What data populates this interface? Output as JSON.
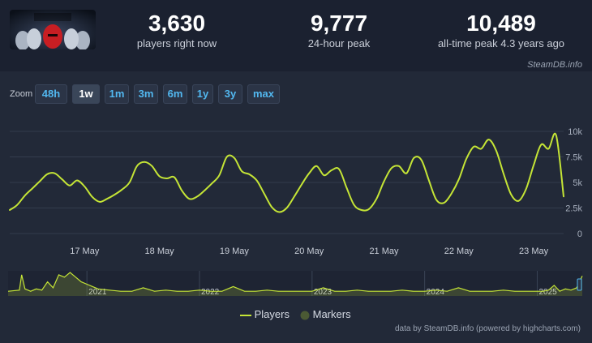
{
  "header": {
    "stats": [
      {
        "value": "3,630",
        "label": "players right now"
      },
      {
        "value": "9,777",
        "label": "24-hour peak"
      },
      {
        "value": "10,489",
        "label": "all-time peak 4.3 years ago"
      }
    ],
    "credit": "SteamDB.info"
  },
  "zoom": {
    "label": "Zoom",
    "buttons": [
      "48h",
      "1w",
      "1m",
      "3m",
      "6m",
      "1y",
      "3y",
      "max"
    ],
    "active": "1w"
  },
  "legend": {
    "players": "Players",
    "markers": "Markers"
  },
  "footer": {
    "credit": "data by SteamDB.info (powered by highcharts.com)"
  },
  "colors": {
    "line": "#c5e536",
    "marker": "#4b5a34"
  },
  "chart_data": {
    "type": "line",
    "series": [
      {
        "name": "Players",
        "x": [
          16.0,
          16.1,
          16.2,
          16.3,
          16.4,
          16.5,
          16.6,
          16.7,
          16.8,
          16.9,
          17.0,
          17.1,
          17.2,
          17.3,
          17.4,
          17.5,
          17.6,
          17.7,
          17.8,
          17.9,
          18.0,
          18.1,
          18.2,
          18.3,
          18.4,
          18.5,
          18.6,
          18.7,
          18.8,
          18.9,
          19.0,
          19.1,
          19.2,
          19.3,
          19.4,
          19.5,
          19.6,
          19.7,
          19.8,
          19.9,
          20.0,
          20.1,
          20.2,
          20.3,
          20.4,
          20.5,
          20.6,
          20.7,
          20.8,
          20.9,
          21.0,
          21.1,
          21.2,
          21.3,
          21.4,
          21.5,
          21.6,
          21.7,
          21.8,
          21.9,
          22.0,
          22.1,
          22.2,
          22.3,
          22.4,
          22.5,
          22.6,
          22.7,
          22.8,
          22.9,
          23.0,
          23.1,
          23.2,
          23.3,
          23.4
        ],
        "y": [
          2300,
          2800,
          3700,
          4400,
          5100,
          5800,
          5900,
          5300,
          4700,
          5200,
          4600,
          3600,
          3100,
          3400,
          3800,
          4300,
          5000,
          6600,
          7000,
          6600,
          5600,
          5400,
          5500,
          4200,
          3400,
          3600,
          4200,
          4900,
          5700,
          7500,
          7400,
          6100,
          5800,
          5200,
          3900,
          2600,
          2100,
          2500,
          3600,
          4800,
          5900,
          6600,
          5700,
          6200,
          6300,
          4500,
          2800,
          2300,
          2400,
          3400,
          5100,
          6400,
          6600,
          5900,
          7400,
          7200,
          5200,
          3300,
          3000,
          3900,
          5300,
          7300,
          8500,
          8300,
          9200,
          8100,
          5800,
          3800,
          3200,
          4400,
          6700,
          8700,
          8300,
          9600,
          3630
        ]
      }
    ],
    "xlim": [
      16.0,
      23.4
    ],
    "x_ticks": [
      {
        "value": 17,
        "label": "17 May"
      },
      {
        "value": 18,
        "label": "18 May"
      },
      {
        "value": 19,
        "label": "19 May"
      },
      {
        "value": 20,
        "label": "20 May"
      },
      {
        "value": 21,
        "label": "21 May"
      },
      {
        "value": 22,
        "label": "22 May"
      },
      {
        "value": 23,
        "label": "23 May"
      }
    ],
    "y_ticks": [
      {
        "value": 0,
        "label": "0"
      },
      {
        "value": 2500,
        "label": "2.5k"
      },
      {
        "value": 5000,
        "label": "5k"
      },
      {
        "value": 7500,
        "label": "7.5k"
      },
      {
        "value": 10000,
        "label": "10k"
      }
    ],
    "ylim": [
      0,
      10000
    ],
    "grid": "horizontal",
    "legend_position": "bottom-center",
    "navigator": {
      "labels": [
        "2021",
        "2022",
        "2023",
        "2024",
        "2025"
      ],
      "label_years": [
        2021,
        2022,
        2023,
        2024,
        2025
      ],
      "xlim": [
        2020.3,
        2025.4
      ],
      "x": [
        2020.3,
        2020.4,
        2020.42,
        2020.45,
        2020.5,
        2020.55,
        2020.6,
        2020.65,
        2020.7,
        2020.75,
        2020.8,
        2020.85,
        2020.9,
        2020.95,
        2021.0,
        2021.05,
        2021.1,
        2021.2,
        2021.3,
        2021.4,
        2021.5,
        2021.6,
        2021.7,
        2021.8,
        2021.9,
        2022.0,
        2022.1,
        2022.2,
        2022.3,
        2022.4,
        2022.5,
        2022.6,
        2022.7,
        2022.8,
        2022.9,
        2023.0,
        2023.1,
        2023.2,
        2023.3,
        2023.4,
        2023.5,
        2023.6,
        2023.7,
        2023.8,
        2023.9,
        2024.0,
        2024.1,
        2024.2,
        2024.3,
        2024.4,
        2024.5,
        2024.6,
        2024.7,
        2024.8,
        2024.9,
        2025.0,
        2025.05,
        2025.1,
        2025.15,
        2025.2,
        2025.25,
        2025.3,
        2025.35,
        2025.4
      ],
      "y": [
        0.2,
        0.25,
        0.9,
        0.3,
        0.2,
        0.3,
        0.25,
        0.6,
        0.35,
        0.9,
        0.8,
        1.0,
        0.8,
        0.6,
        0.5,
        0.4,
        0.3,
        0.25,
        0.2,
        0.2,
        0.35,
        0.2,
        0.25,
        0.2,
        0.2,
        0.25,
        0.2,
        0.2,
        0.4,
        0.2,
        0.2,
        0.25,
        0.2,
        0.2,
        0.2,
        0.2,
        0.35,
        0.2,
        0.2,
        0.25,
        0.2,
        0.2,
        0.2,
        0.25,
        0.2,
        0.2,
        0.25,
        0.2,
        0.35,
        0.2,
        0.2,
        0.2,
        0.25,
        0.2,
        0.2,
        0.2,
        0.2,
        0.25,
        0.45,
        0.2,
        0.3,
        0.25,
        0.35,
        0.85
      ]
    }
  }
}
